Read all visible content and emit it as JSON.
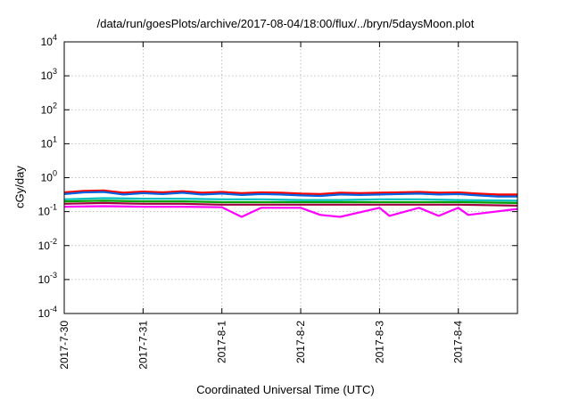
{
  "chart_data": {
    "type": "line",
    "title": "/data/run/goesPlots/archive/2017-08-04/18:00/flux/../bryn/5daysMoon.plot",
    "xlabel": "Coordinated Universal Time (UTC)",
    "ylabel": "cGy/day",
    "yscale": "log",
    "ylim": [
      0.0001,
      10000
    ],
    "yticks": [
      {
        "value": 0.0001,
        "base": "10",
        "exp": "-4"
      },
      {
        "value": 0.001,
        "base": "10",
        "exp": "-3"
      },
      {
        "value": 0.01,
        "base": "10",
        "exp": "-2"
      },
      {
        "value": 0.1,
        "base": "10",
        "exp": "-1"
      },
      {
        "value": 1,
        "base": "10",
        "exp": "0"
      },
      {
        "value": 10,
        "base": "10",
        "exp": "1"
      },
      {
        "value": 100,
        "base": "10",
        "exp": "2"
      },
      {
        "value": 1000,
        "base": "10",
        "exp": "3"
      },
      {
        "value": 10000,
        "base": "10",
        "exp": "4"
      }
    ],
    "xlim": [
      "2017-07-30T00:00",
      "2017-08-04T18:00"
    ],
    "xticks": [
      {
        "value": "2017-07-30T00:00",
        "label": "2017-7-30"
      },
      {
        "value": "2017-07-31T00:00",
        "label": "2017-7-31"
      },
      {
        "value": "2017-08-01T00:00",
        "label": "2017-8-1"
      },
      {
        "value": "2017-08-02T00:00",
        "label": "2017-8-2"
      },
      {
        "value": "2017-08-03T00:00",
        "label": "2017-8-3"
      },
      {
        "value": "2017-08-04T00:00",
        "label": "2017-8-4"
      }
    ],
    "grid": true,
    "series": [
      {
        "color": "#ff0000",
        "values": [
          {
            "t": "2017-07-30T00:00",
            "y": 0.37
          },
          {
            "t": "2017-07-30T06:00",
            "y": 0.41
          },
          {
            "t": "2017-07-30T12:00",
            "y": 0.42
          },
          {
            "t": "2017-07-30T18:00",
            "y": 0.36
          },
          {
            "t": "2017-07-31T00:00",
            "y": 0.39
          },
          {
            "t": "2017-07-31T06:00",
            "y": 0.37
          },
          {
            "t": "2017-07-31T12:00",
            "y": 0.4
          },
          {
            "t": "2017-07-31T18:00",
            "y": 0.36
          },
          {
            "t": "2017-08-01T00:00",
            "y": 0.38
          },
          {
            "t": "2017-08-01T06:00",
            "y": 0.35
          },
          {
            "t": "2017-08-01T12:00",
            "y": 0.37
          },
          {
            "t": "2017-08-01T18:00",
            "y": 0.36
          },
          {
            "t": "2017-08-02T00:00",
            "y": 0.34
          },
          {
            "t": "2017-08-02T06:00",
            "y": 0.33
          },
          {
            "t": "2017-08-02T12:00",
            "y": 0.36
          },
          {
            "t": "2017-08-02T18:00",
            "y": 0.35
          },
          {
            "t": "2017-08-03T00:00",
            "y": 0.36
          },
          {
            "t": "2017-08-03T06:00",
            "y": 0.37
          },
          {
            "t": "2017-08-03T12:00",
            "y": 0.38
          },
          {
            "t": "2017-08-03T18:00",
            "y": 0.36
          },
          {
            "t": "2017-08-04T00:00",
            "y": 0.37
          },
          {
            "t": "2017-08-04T06:00",
            "y": 0.34
          },
          {
            "t": "2017-08-04T12:00",
            "y": 0.32
          },
          {
            "t": "2017-08-04T18:00",
            "y": 0.32
          }
        ]
      },
      {
        "color": "#0060e0",
        "values": [
          {
            "t": "2017-07-30T00:00",
            "y": 0.33
          },
          {
            "t": "2017-07-30T06:00",
            "y": 0.37
          },
          {
            "t": "2017-07-30T12:00",
            "y": 0.38
          },
          {
            "t": "2017-07-30T18:00",
            "y": 0.32
          },
          {
            "t": "2017-07-31T00:00",
            "y": 0.35
          },
          {
            "t": "2017-07-31T06:00",
            "y": 0.33
          },
          {
            "t": "2017-07-31T12:00",
            "y": 0.36
          },
          {
            "t": "2017-07-31T18:00",
            "y": 0.32
          },
          {
            "t": "2017-08-01T00:00",
            "y": 0.34
          },
          {
            "t": "2017-08-01T06:00",
            "y": 0.31
          },
          {
            "t": "2017-08-01T12:00",
            "y": 0.33
          },
          {
            "t": "2017-08-01T18:00",
            "y": 0.32
          },
          {
            "t": "2017-08-02T00:00",
            "y": 0.3
          },
          {
            "t": "2017-08-02T06:00",
            "y": 0.29
          },
          {
            "t": "2017-08-02T12:00",
            "y": 0.32
          },
          {
            "t": "2017-08-02T18:00",
            "y": 0.31
          },
          {
            "t": "2017-08-03T00:00",
            "y": 0.32
          },
          {
            "t": "2017-08-03T06:00",
            "y": 0.33
          },
          {
            "t": "2017-08-03T12:00",
            "y": 0.34
          },
          {
            "t": "2017-08-03T18:00",
            "y": 0.32
          },
          {
            "t": "2017-08-04T00:00",
            "y": 0.33
          },
          {
            "t": "2017-08-04T06:00",
            "y": 0.3
          },
          {
            "t": "2017-08-04T12:00",
            "y": 0.28
          },
          {
            "t": "2017-08-04T18:00",
            "y": 0.28
          }
        ]
      },
      {
        "color": "#00c0c0",
        "values": [
          {
            "t": "2017-07-30T00:00",
            "y": 0.23
          },
          {
            "t": "2017-07-30T12:00",
            "y": 0.25
          },
          {
            "t": "2017-07-31T00:00",
            "y": 0.24
          },
          {
            "t": "2017-07-31T12:00",
            "y": 0.24
          },
          {
            "t": "2017-08-01T00:00",
            "y": 0.23
          },
          {
            "t": "2017-08-01T12:00",
            "y": 0.23
          },
          {
            "t": "2017-08-02T00:00",
            "y": 0.22
          },
          {
            "t": "2017-08-02T12:00",
            "y": 0.22
          },
          {
            "t": "2017-08-03T00:00",
            "y": 0.23
          },
          {
            "t": "2017-08-03T12:00",
            "y": 0.23
          },
          {
            "t": "2017-08-04T00:00",
            "y": 0.22
          },
          {
            "t": "2017-08-04T18:00",
            "y": 0.21
          }
        ]
      },
      {
        "color": "#00a000",
        "values": [
          {
            "t": "2017-07-30T00:00",
            "y": 0.2
          },
          {
            "t": "2017-07-30T12:00",
            "y": 0.21
          },
          {
            "t": "2017-07-31T00:00",
            "y": 0.2
          },
          {
            "t": "2017-07-31T12:00",
            "y": 0.2
          },
          {
            "t": "2017-08-01T00:00",
            "y": 0.19
          },
          {
            "t": "2017-08-01T12:00",
            "y": 0.19
          },
          {
            "t": "2017-08-02T00:00",
            "y": 0.19
          },
          {
            "t": "2017-08-02T12:00",
            "y": 0.19
          },
          {
            "t": "2017-08-03T00:00",
            "y": 0.19
          },
          {
            "t": "2017-08-03T12:00",
            "y": 0.19
          },
          {
            "t": "2017-08-04T00:00",
            "y": 0.19
          },
          {
            "t": "2017-08-04T18:00",
            "y": 0.18
          }
        ]
      },
      {
        "color": "#a00040",
        "values": [
          {
            "t": "2017-07-30T00:00",
            "y": 0.17
          },
          {
            "t": "2017-07-30T12:00",
            "y": 0.18
          },
          {
            "t": "2017-07-31T00:00",
            "y": 0.17
          },
          {
            "t": "2017-07-31T12:00",
            "y": 0.17
          },
          {
            "t": "2017-08-01T00:00",
            "y": 0.16
          },
          {
            "t": "2017-08-01T12:00",
            "y": 0.16
          },
          {
            "t": "2017-08-02T00:00",
            "y": 0.16
          },
          {
            "t": "2017-08-02T12:00",
            "y": 0.16
          },
          {
            "t": "2017-08-03T00:00",
            "y": 0.16
          },
          {
            "t": "2017-08-03T12:00",
            "y": 0.16
          },
          {
            "t": "2017-08-04T00:00",
            "y": 0.16
          },
          {
            "t": "2017-08-04T18:00",
            "y": 0.15
          }
        ]
      },
      {
        "color": "#ff00ff",
        "values": [
          {
            "t": "2017-07-30T00:00",
            "y": 0.14
          },
          {
            "t": "2017-07-30T12:00",
            "y": 0.145
          },
          {
            "t": "2017-07-31T00:00",
            "y": 0.14
          },
          {
            "t": "2017-07-31T12:00",
            "y": 0.14
          },
          {
            "t": "2017-08-01T00:00",
            "y": 0.135
          },
          {
            "t": "2017-08-01T06:00",
            "y": 0.07
          },
          {
            "t": "2017-08-01T12:00",
            "y": 0.13
          },
          {
            "t": "2017-08-02T00:00",
            "y": 0.13
          },
          {
            "t": "2017-08-02T06:00",
            "y": 0.08
          },
          {
            "t": "2017-08-02T12:00",
            "y": 0.07
          },
          {
            "t": "2017-08-03T00:00",
            "y": 0.13
          },
          {
            "t": "2017-08-03T03:00",
            "y": 0.075
          },
          {
            "t": "2017-08-03T12:00",
            "y": 0.13
          },
          {
            "t": "2017-08-03T18:00",
            "y": 0.075
          },
          {
            "t": "2017-08-04T00:00",
            "y": 0.13
          },
          {
            "t": "2017-08-04T03:00",
            "y": 0.08
          },
          {
            "t": "2017-08-04T18:00",
            "y": 0.12
          }
        ]
      }
    ]
  }
}
